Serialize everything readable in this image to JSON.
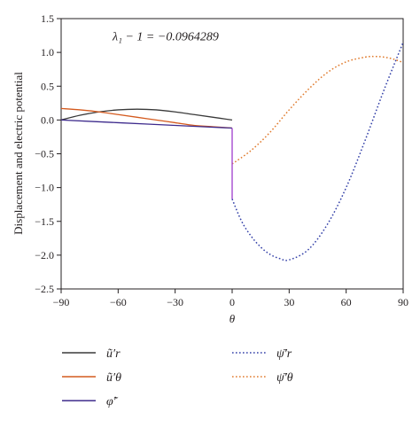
{
  "chart_data": {
    "type": "line",
    "title": "",
    "xlabel": "θ",
    "ylabel": "Displacement and electric potential",
    "xlim": [
      -90,
      90
    ],
    "ylim": [
      -2.5,
      1.5
    ],
    "xticks": [
      -90,
      -60,
      -30,
      0,
      30,
      60,
      90
    ],
    "xtick_labels": [
      "−90",
      "−60",
      "−30",
      "0",
      "30",
      "60",
      "90"
    ],
    "yticks": [
      -2.5,
      -2.0,
      -1.5,
      -1.0,
      -0.5,
      0.0,
      0.5,
      1.0,
      1.5
    ],
    "ytick_labels": [
      "−2.5",
      "−2.0",
      "−1.5",
      "−1.0",
      "−0.5",
      "0.0",
      "0.5",
      "1.0",
      "1.5"
    ],
    "grid": false,
    "legend_position": "bottom",
    "annotation": {
      "text": "λ₁ − 1 = −0.0964289",
      "anchor": [
        -35,
        1.18
      ]
    },
    "series": [
      {
        "name": "ũ′r",
        "color": "#3a3a3a",
        "dash": "solid",
        "x": [
          -90,
          -80,
          -70,
          -60,
          -50,
          -40,
          -30,
          -20,
          -10,
          0
        ],
        "y": [
          0.0,
          0.07,
          0.12,
          0.15,
          0.16,
          0.15,
          0.12,
          0.08,
          0.04,
          0.0
        ]
      },
      {
        "name": "ũ′θ",
        "color": "#d45a1e",
        "dash": "solid",
        "x": [
          -90,
          -80,
          -70,
          -60,
          -50,
          -40,
          -30,
          -20,
          -10,
          0
        ],
        "y": [
          0.17,
          0.15,
          0.12,
          0.08,
          0.04,
          0.0,
          -0.04,
          -0.08,
          -0.1,
          -0.12
        ]
      },
      {
        "name": "φ̃′",
        "color": "#3d2a8c",
        "dash": "solid",
        "x": [
          -90,
          -60,
          -30,
          0
        ],
        "y": [
          0.0,
          -0.04,
          -0.08,
          -0.12
        ]
      },
      {
        "name": "ψ̄′r",
        "color": "#3340a8",
        "dash": "dotted",
        "x": [
          0,
          5,
          10,
          15,
          20,
          25,
          30,
          40,
          50,
          60,
          70,
          80,
          90
        ],
        "y": [
          -1.17,
          -1.5,
          -1.72,
          -1.88,
          -1.99,
          -2.05,
          -2.07,
          -1.92,
          -1.55,
          -1.0,
          -0.3,
          0.45,
          1.15
        ]
      },
      {
        "name": "ψ̄′θ",
        "color": "#e07b2e",
        "dash": "dotted",
        "x": [
          0,
          10,
          20,
          30,
          40,
          50,
          60,
          70,
          75,
          80,
          85,
          90
        ],
        "y": [
          -0.65,
          -0.45,
          -0.18,
          0.15,
          0.45,
          0.7,
          0.86,
          0.93,
          0.94,
          0.93,
          0.9,
          0.85
        ]
      }
    ],
    "connector": {
      "color": "#a54ad0",
      "x": [
        0,
        0
      ],
      "y": [
        -0.12,
        -1.17
      ]
    }
  }
}
